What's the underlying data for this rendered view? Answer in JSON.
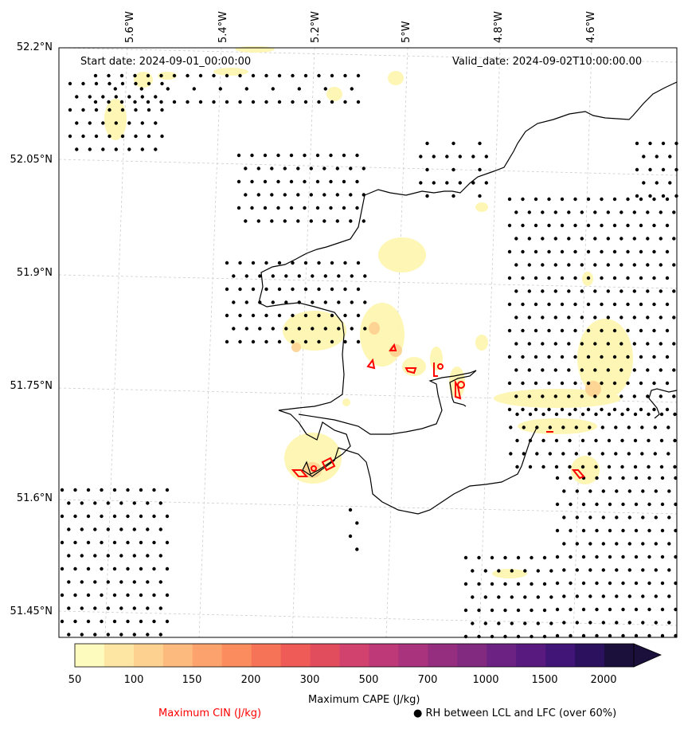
{
  "header": {
    "start_date": "Start date: 2024-09-01_00:00:00",
    "valid_date": "Valid_date: 2024-09-02T10:00:00.00"
  },
  "axes": {
    "lat_labels": [
      "52.2°N",
      "52.05°N",
      "51.9°N",
      "51.75°N",
      "51.6°N",
      "51.45°N"
    ],
    "lon_labels": [
      "5.6°W",
      "5.4°W",
      "5.2°W",
      "5°W",
      "4.8°W",
      "4.6°W"
    ]
  },
  "colorbar": {
    "ticks": [
      "50",
      "100",
      "150",
      "200",
      "300",
      "500",
      "700",
      "1000",
      "1500",
      "2000"
    ],
    "colors": [
      "#fefbbf",
      "#fde6a3",
      "#fdd190",
      "#fdba7e",
      "#fca26d",
      "#fb8c5e",
      "#f67357",
      "#ef5c58",
      "#e24d5e",
      "#d2426e",
      "#be3977",
      "#aa337d",
      "#962e80",
      "#822a80",
      "#6c2282",
      "#581a7f",
      "#411577",
      "#2c115f",
      "#1b0f3b"
    ],
    "label": "Maximum CAPE (J/kg)"
  },
  "legend": {
    "cin_label": "Maximum CIN (J/kg)",
    "cin_color": "#ff0000",
    "rh_label": "RH between LCL and LFC (over 60%)",
    "rh_marker": "●"
  },
  "colors": {
    "coastline": "#000000",
    "grid": "#cccccc",
    "cape_low": "#fef6b0"
  }
}
